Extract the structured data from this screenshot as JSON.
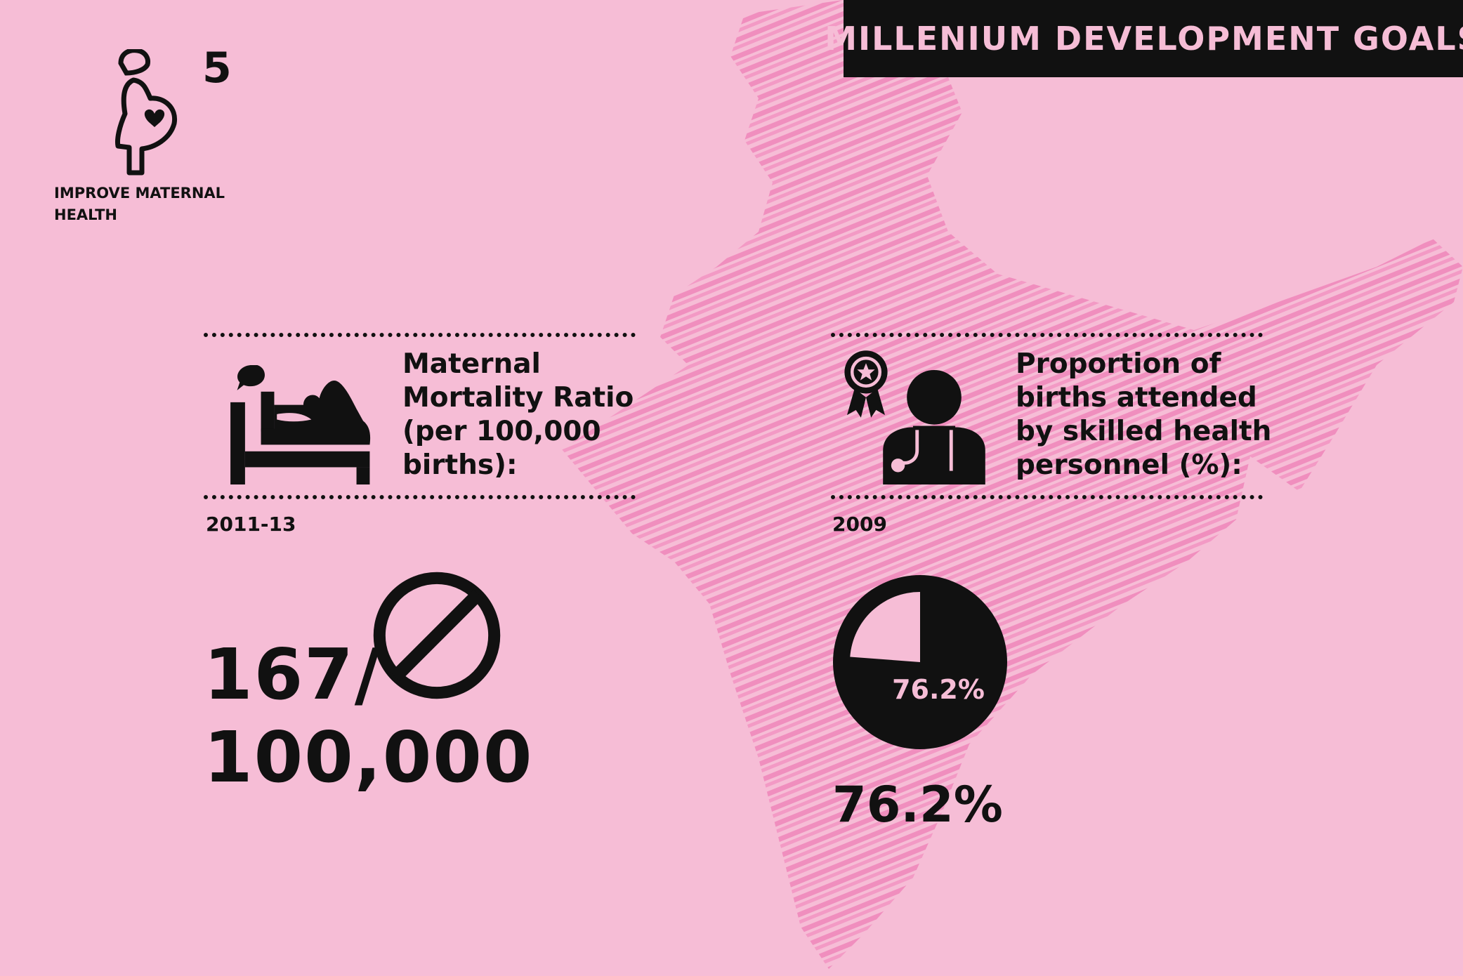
{
  "header": {
    "title": "MILLENIUM DEVELOPMENT GOALS"
  },
  "goal": {
    "number": "5",
    "label": "IMPROVE MATERNAL HEALTH"
  },
  "left_stat": {
    "title": "Maternal\nMortality Ratio\n(per 100,000\nbirths):",
    "year": "2011-13",
    "value": "167/\n100,000"
  },
  "right_stat": {
    "title": "Proportion of\nbirths attended\nby skilled health\npersonnel (%):",
    "year": "2009",
    "value": "76.2%",
    "pie_label": "76.2%",
    "pie_fraction": 0.762
  },
  "colors": {
    "background": "#f6bdd6",
    "scribble": "#f08cbd",
    "ink": "#111111"
  }
}
